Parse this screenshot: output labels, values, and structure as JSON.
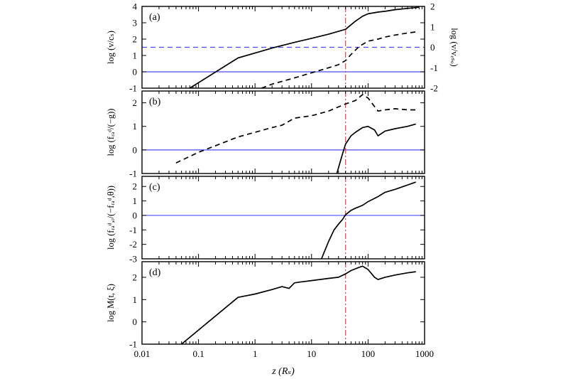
{
  "chart_data": [
    {
      "type": "line",
      "panel_label": "(a)",
      "ylabel": "log (v/cₛ)",
      "ylabel_right": "log (v/vₑₛₒ)",
      "ylim": [
        -1,
        4
      ],
      "yticks": [
        -1,
        0,
        1,
        2,
        3,
        4
      ],
      "ylim_right": [
        -2,
        2
      ],
      "yticks_right": [
        -2,
        -1,
        0,
        1,
        2
      ],
      "x_scale": "log",
      "xlim": [
        0.01,
        1000
      ],
      "hlines": [
        {
          "y": 0,
          "style": "solid",
          "color": "#4a4af0"
        },
        {
          "y": 1.5,
          "style": "dashed",
          "color": "#4a4af0"
        }
      ],
      "vline": {
        "x": 40,
        "style": "dash-dot",
        "color": "#e0303a"
      },
      "series": [
        {
          "style": "solid",
          "axis": "left",
          "x": [
            0.07,
            0.5,
            1,
            2,
            5,
            10,
            20,
            40,
            60,
            80,
            100,
            150,
            200,
            300,
            500,
            800
          ],
          "y": [
            -1,
            0.85,
            1.15,
            1.45,
            1.8,
            2.05,
            2.3,
            2.6,
            3.1,
            3.4,
            3.55,
            3.65,
            3.7,
            3.8,
            3.88,
            3.95
          ]
        },
        {
          "style": "dashed",
          "axis": "right",
          "x": [
            1.3,
            2,
            5,
            10,
            20,
            30,
            40,
            50,
            70,
            100,
            150,
            200,
            300,
            500,
            700
          ],
          "y": [
            -2,
            -1.8,
            -1.5,
            -1.25,
            -1,
            -0.85,
            -0.65,
            -0.35,
            0.05,
            0.3,
            0.4,
            0.5,
            0.6,
            0.7,
            0.75
          ]
        }
      ]
    },
    {
      "type": "line",
      "panel_label": "(b)",
      "ylabel": "log (fᵣₐᵈ/(−g))",
      "ylim": [
        -1,
        2.5
      ],
      "yticks": [
        -1,
        0,
        1,
        2
      ],
      "x_scale": "log",
      "xlim": [
        0.01,
        1000
      ],
      "hlines": [
        {
          "y": 0,
          "style": "solid",
          "color": "#4a4af0"
        }
      ],
      "vline": {
        "x": 40,
        "style": "dash-dot",
        "color": "#e0303a"
      },
      "series": [
        {
          "style": "dashed",
          "x": [
            0.04,
            0.1,
            0.5,
            1,
            2,
            3,
            5,
            10,
            20,
            40,
            60,
            80,
            100,
            120,
            150,
            200,
            300,
            500,
            700
          ],
          "y": [
            -0.55,
            -0.1,
            0.55,
            0.75,
            0.95,
            1.05,
            1.35,
            1.45,
            1.65,
            1.95,
            2.1,
            2.35,
            2.2,
            1.95,
            1.65,
            1.7,
            1.75,
            1.7,
            1.7
          ]
        },
        {
          "style": "solid",
          "x": [
            28,
            35,
            40,
            50,
            60,
            80,
            100,
            130,
            150,
            200,
            300,
            500,
            700
          ],
          "y": [
            -1,
            -0.2,
            0.25,
            0.6,
            0.75,
            0.95,
            1.0,
            0.85,
            0.6,
            0.8,
            0.9,
            1.0,
            1.1
          ]
        }
      ]
    },
    {
      "type": "line",
      "panel_label": "(c)",
      "ylabel": "log (fᵣₐᵈ,ᵣ/(−fᵣₐᵈ,θ))",
      "ylim": [
        -3,
        2.7
      ],
      "yticks": [
        -3,
        -2,
        -1,
        0,
        1,
        2
      ],
      "x_scale": "log",
      "xlim": [
        0.01,
        1000
      ],
      "hlines": [
        {
          "y": 0,
          "style": "solid",
          "color": "#4a4af0"
        }
      ],
      "vline": {
        "x": 40,
        "style": "dash-dot",
        "color": "#e0303a"
      },
      "series": [
        {
          "style": "solid",
          "x": [
            15,
            20,
            25,
            30,
            35,
            40,
            50,
            60,
            80,
            100,
            150,
            200,
            300,
            500,
            700
          ],
          "y": [
            -3,
            -1.8,
            -1.0,
            -0.6,
            -0.3,
            0.05,
            0.35,
            0.5,
            0.7,
            0.95,
            1.3,
            1.6,
            1.8,
            2.1,
            2.3
          ]
        }
      ]
    },
    {
      "type": "line",
      "panel_label": "(d)",
      "ylabel": "log M(t, ξ)",
      "ylim": [
        -1,
        2.7
      ],
      "yticks": [
        -1,
        0,
        1,
        2
      ],
      "x_scale": "log",
      "xlim": [
        0.01,
        1000
      ],
      "xticks": [
        0.01,
        0.1,
        1,
        10,
        100,
        1000
      ],
      "xtick_labels": [
        "0.01",
        "0.1",
        "1",
        "10",
        "100",
        "1000"
      ],
      "xlabel": "z (Rₛ)",
      "vline": {
        "x": 40,
        "style": "dash-dot",
        "color": "#e0303a"
      },
      "series": [
        {
          "style": "solid",
          "x": [
            0.05,
            0.5,
            1,
            2,
            3,
            4,
            5,
            6,
            10,
            20,
            30,
            40,
            50,
            70,
            80,
            100,
            130,
            150,
            200,
            300,
            500,
            700
          ],
          "y": [
            -1,
            1.1,
            1.25,
            1.45,
            1.58,
            1.5,
            1.75,
            1.78,
            1.85,
            1.95,
            2.0,
            2.15,
            2.3,
            2.45,
            2.5,
            2.35,
            2.0,
            1.9,
            2.0,
            2.1,
            2.2,
            2.25
          ]
        }
      ]
    }
  ]
}
